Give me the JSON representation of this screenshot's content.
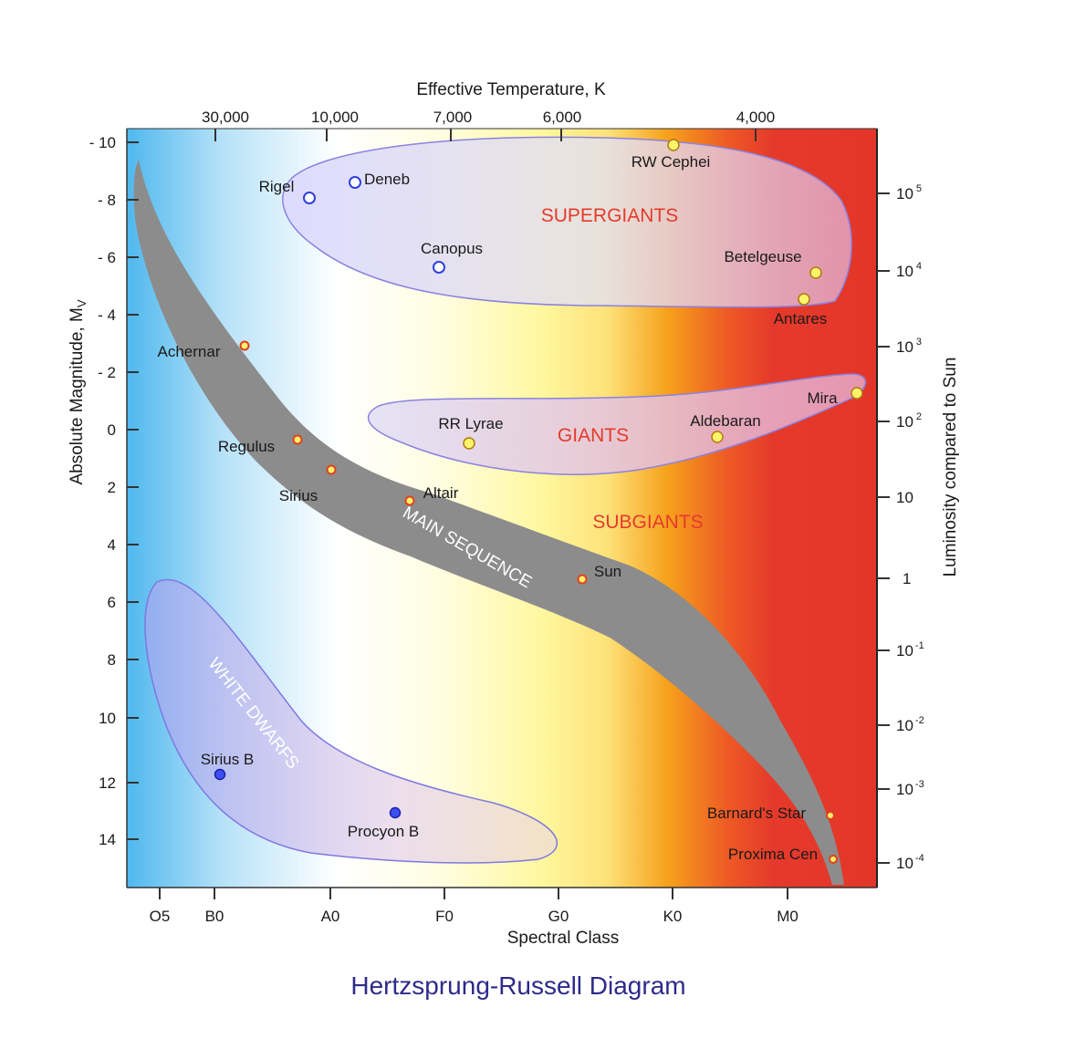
{
  "title": "Hertzsprung-Russell Diagram",
  "axes": {
    "top_title": "Effective Temperature, K",
    "bottom_title": "Spectral Class",
    "left_title": "Absolute Magnitude, M",
    "left_title_sub": "V",
    "right_title": "Luminosity compared to Sun",
    "temperature_ticks": [
      "30,000",
      "10,000",
      "7,000",
      "6,000",
      "4,000"
    ],
    "spectral_ticks": [
      "O5",
      "B0",
      "A0",
      "F0",
      "G0",
      "K0",
      "M0"
    ],
    "magnitude_ticks": [
      "- 10",
      "- 8",
      "- 6",
      "- 4",
      "- 2",
      "0",
      "2",
      "4",
      "6",
      "8",
      "10",
      "12",
      "14"
    ],
    "luminosity_ticks": [
      {
        "base": "10",
        "exp": "5"
      },
      {
        "base": "10",
        "exp": "4"
      },
      {
        "base": "10",
        "exp": "3"
      },
      {
        "base": "10",
        "exp": "2"
      },
      {
        "base": "10",
        "exp": ""
      },
      {
        "base": "1",
        "exp": ""
      },
      {
        "base": "10",
        "exp": "-1"
      },
      {
        "base": "10",
        "exp": "-2"
      },
      {
        "base": "10",
        "exp": "-3"
      },
      {
        "base": "10",
        "exp": "-4"
      }
    ]
  },
  "regions": {
    "supergiants": "SUPERGIANTS",
    "giants": "GIANTS",
    "subgiants": "SUBGIANTS",
    "main_sequence": "MAIN SEQUENCE",
    "white_dwarfs": "WHITE DWARFS"
  },
  "stars": [
    {
      "name": "RW Cephei",
      "type": "yellow-giant"
    },
    {
      "name": "Deneb",
      "type": "blue-hollow"
    },
    {
      "name": "Rigel",
      "type": "blue-hollow"
    },
    {
      "name": "Canopus",
      "type": "blue-hollow"
    },
    {
      "name": "Betelgeuse",
      "type": "yellow-giant"
    },
    {
      "name": "Antares",
      "type": "yellow-giant"
    },
    {
      "name": "Mira",
      "type": "yellow-giant"
    },
    {
      "name": "Aldebaran",
      "type": "yellow-giant"
    },
    {
      "name": "RR Lyrae",
      "type": "yellow-giant"
    },
    {
      "name": "Achernar",
      "type": "main-sequence"
    },
    {
      "name": "Regulus",
      "type": "main-sequence"
    },
    {
      "name": "Sirius",
      "type": "main-sequence"
    },
    {
      "name": "Altair",
      "type": "main-sequence"
    },
    {
      "name": "Sun",
      "type": "main-sequence"
    },
    {
      "name": "Barnard's Star",
      "type": "main-sequence"
    },
    {
      "name": "Proxima Cen",
      "type": "main-sequence"
    },
    {
      "name": "Sirius B",
      "type": "white-dwarf"
    },
    {
      "name": "Procyon B",
      "type": "white-dwarf"
    }
  ],
  "colors": {
    "blue_edge": "#4fb8ee",
    "white_mid": "#ffffff",
    "yellow_mid": "#fffaa0",
    "orange": "#f6a21c",
    "red_edge": "#e53a2b",
    "main_sequence_band": "#8c8c8c",
    "region_label_red": "#e53a2b",
    "title_blue": "#2e2a8a"
  }
}
